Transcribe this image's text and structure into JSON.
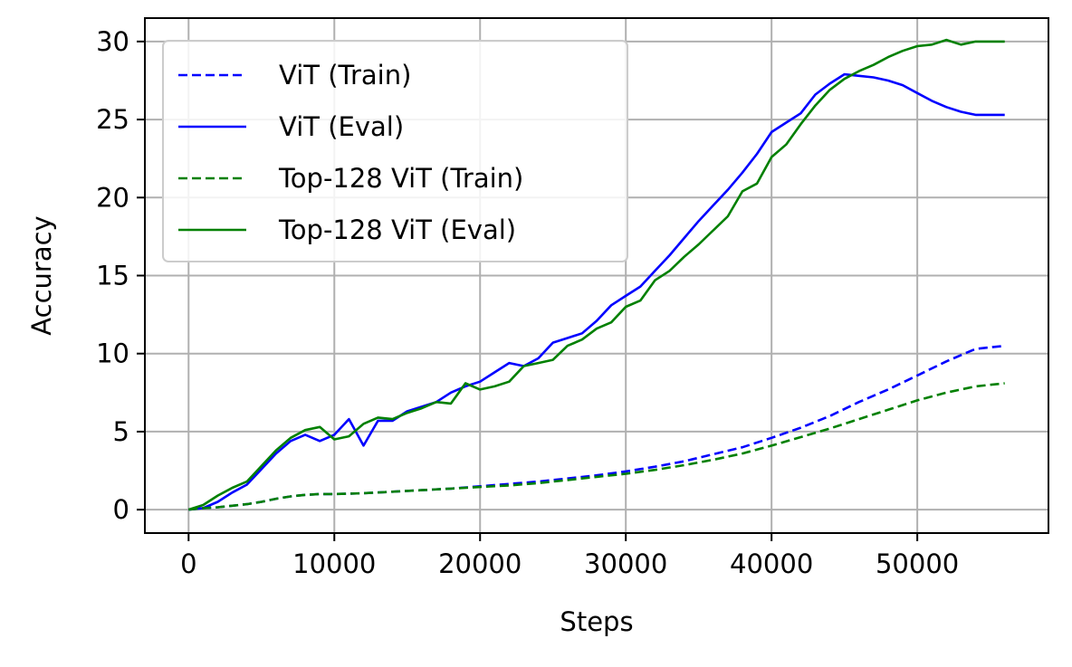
{
  "chart_data": {
    "type": "line",
    "title": "",
    "xlabel": "Steps",
    "ylabel": "Accuracy",
    "xlim": [
      -3000,
      59000
    ],
    "ylim": [
      -1.5,
      31.5
    ],
    "xticks": [
      0,
      10000,
      20000,
      30000,
      40000,
      50000
    ],
    "yticks": [
      0,
      5,
      10,
      15,
      20,
      25,
      30
    ],
    "grid": true,
    "legend_position": "top-left",
    "series": [
      {
        "name": "ViT (Train)",
        "color": "#0000ff",
        "linestyle": "dashed",
        "x": [
          0,
          1000,
          2000,
          3000,
          4000,
          5000,
          6000,
          7000,
          8000,
          9000,
          10000,
          12000,
          14000,
          16000,
          18000,
          20000,
          22000,
          24000,
          26000,
          28000,
          30000,
          32000,
          34000,
          36000,
          38000,
          40000,
          42000,
          44000,
          46000,
          48000,
          50000,
          52000,
          54000,
          56000
        ],
        "y": [
          0.0,
          0.1,
          0.15,
          0.25,
          0.35,
          0.5,
          0.7,
          0.85,
          0.95,
          1.0,
          1.0,
          1.05,
          1.15,
          1.25,
          1.35,
          1.5,
          1.65,
          1.8,
          2.0,
          2.2,
          2.45,
          2.75,
          3.1,
          3.55,
          4.0,
          4.6,
          5.25,
          6.0,
          6.9,
          7.7,
          8.6,
          9.5,
          10.3,
          10.5
        ]
      },
      {
        "name": "ViT (Eval)",
        "color": "#0000ff",
        "linestyle": "solid",
        "x": [
          0,
          1000,
          2000,
          3000,
          4000,
          5000,
          6000,
          7000,
          8000,
          9000,
          10000,
          11000,
          12000,
          13000,
          14000,
          15000,
          16000,
          17000,
          18000,
          19000,
          20000,
          21000,
          22000,
          23000,
          24000,
          25000,
          26000,
          27000,
          28000,
          29000,
          30000,
          31000,
          32000,
          33000,
          34000,
          35000,
          36000,
          37000,
          38000,
          39000,
          40000,
          41000,
          42000,
          43000,
          44000,
          45000,
          46000,
          47000,
          48000,
          49000,
          50000,
          51000,
          52000,
          53000,
          54000,
          55000,
          56000
        ],
        "y": [
          0.0,
          0.1,
          0.5,
          1.1,
          1.6,
          2.6,
          3.6,
          4.4,
          4.8,
          4.4,
          4.8,
          5.8,
          4.1,
          5.7,
          5.7,
          6.3,
          6.6,
          6.9,
          7.5,
          7.9,
          8.2,
          8.8,
          9.4,
          9.2,
          9.7,
          10.7,
          11.0,
          11.3,
          12.1,
          13.1,
          13.7,
          14.3,
          15.3,
          16.3,
          17.4,
          18.5,
          19.5,
          20.5,
          21.6,
          22.8,
          24.2,
          24.8,
          25.4,
          26.6,
          27.3,
          27.9,
          27.8,
          27.7,
          27.5,
          27.2,
          26.7,
          26.2,
          25.8,
          25.5,
          25.3,
          25.3,
          25.3
        ]
      },
      {
        "name": "Top-128 ViT (Train)",
        "color": "#008000",
        "linestyle": "dashed",
        "x": [
          0,
          1000,
          2000,
          3000,
          4000,
          5000,
          6000,
          7000,
          8000,
          9000,
          10000,
          12000,
          14000,
          16000,
          18000,
          20000,
          22000,
          24000,
          26000,
          28000,
          30000,
          32000,
          34000,
          36000,
          38000,
          40000,
          42000,
          44000,
          46000,
          48000,
          50000,
          52000,
          54000,
          56000
        ],
        "y": [
          0.0,
          0.1,
          0.15,
          0.25,
          0.35,
          0.5,
          0.7,
          0.85,
          0.95,
          1.0,
          1.0,
          1.05,
          1.15,
          1.25,
          1.35,
          1.45,
          1.55,
          1.7,
          1.9,
          2.1,
          2.3,
          2.55,
          2.85,
          3.2,
          3.6,
          4.1,
          4.65,
          5.2,
          5.8,
          6.4,
          7.0,
          7.5,
          7.9,
          8.1
        ]
      },
      {
        "name": "Top-128 ViT (Eval)",
        "color": "#008000",
        "linestyle": "solid",
        "x": [
          0,
          1000,
          2000,
          3000,
          4000,
          5000,
          6000,
          7000,
          8000,
          9000,
          10000,
          11000,
          12000,
          13000,
          14000,
          15000,
          16000,
          17000,
          18000,
          19000,
          20000,
          21000,
          22000,
          23000,
          24000,
          25000,
          26000,
          27000,
          28000,
          29000,
          30000,
          31000,
          32000,
          33000,
          34000,
          35000,
          36000,
          37000,
          38000,
          39000,
          40000,
          41000,
          42000,
          43000,
          44000,
          45000,
          46000,
          47000,
          48000,
          49000,
          50000,
          51000,
          52000,
          53000,
          54000,
          55000,
          56000
        ],
        "y": [
          0.0,
          0.3,
          0.9,
          1.4,
          1.8,
          2.8,
          3.8,
          4.6,
          5.1,
          5.3,
          4.5,
          4.7,
          5.5,
          5.9,
          5.8,
          6.2,
          6.5,
          6.9,
          6.8,
          8.1,
          7.7,
          7.9,
          8.2,
          9.2,
          9.4,
          9.6,
          10.5,
          10.9,
          11.6,
          12.0,
          13.0,
          13.4,
          14.7,
          15.3,
          16.2,
          17.0,
          17.9,
          18.8,
          20.4,
          20.9,
          22.6,
          23.4,
          24.7,
          25.9,
          26.9,
          27.6,
          28.1,
          28.5,
          29.0,
          29.4,
          29.7,
          29.8,
          30.1,
          29.8,
          30.0,
          30.0,
          30.0
        ]
      }
    ]
  }
}
